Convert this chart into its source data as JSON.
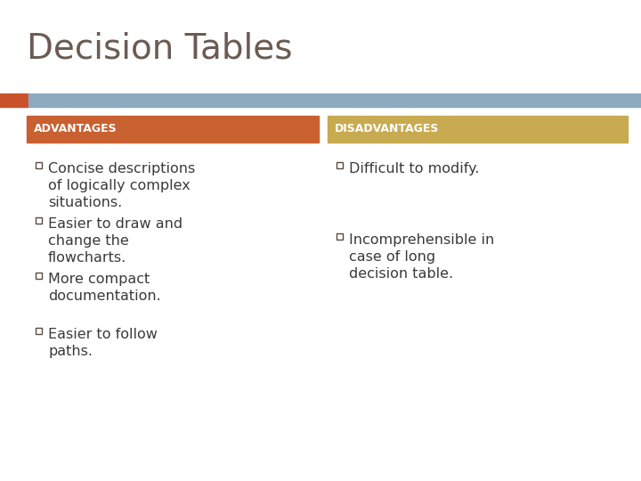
{
  "title": "Decision Tables",
  "title_color": "#6b5b52",
  "title_fontsize": 28,
  "background_color": "#ffffff",
  "header_bar_color": "#8eaabf",
  "header_bar_orange": "#c9522a",
  "adv_header_color": "#c86030",
  "disadv_header_color": "#c8aa50",
  "adv_label": "ADVANTAGES",
  "disadv_label": "DISADVANTAGES",
  "header_label_color": "#ffffff",
  "header_label_fontsize": 9,
  "advantages": [
    "Concise descriptions\nof logically complex\nsituations.",
    "Easier to draw and\nchange the\nflowcharts.",
    "More compact\ndocumentation.",
    "Easier to follow\npaths."
  ],
  "disadvantages": [
    "Difficult to modify.",
    "Incomprehensible in\ncase of long\ndecision table."
  ],
  "bullet_color": "#5a4a42",
  "text_color": "#3a3a3a",
  "text_fontsize": 11.5
}
